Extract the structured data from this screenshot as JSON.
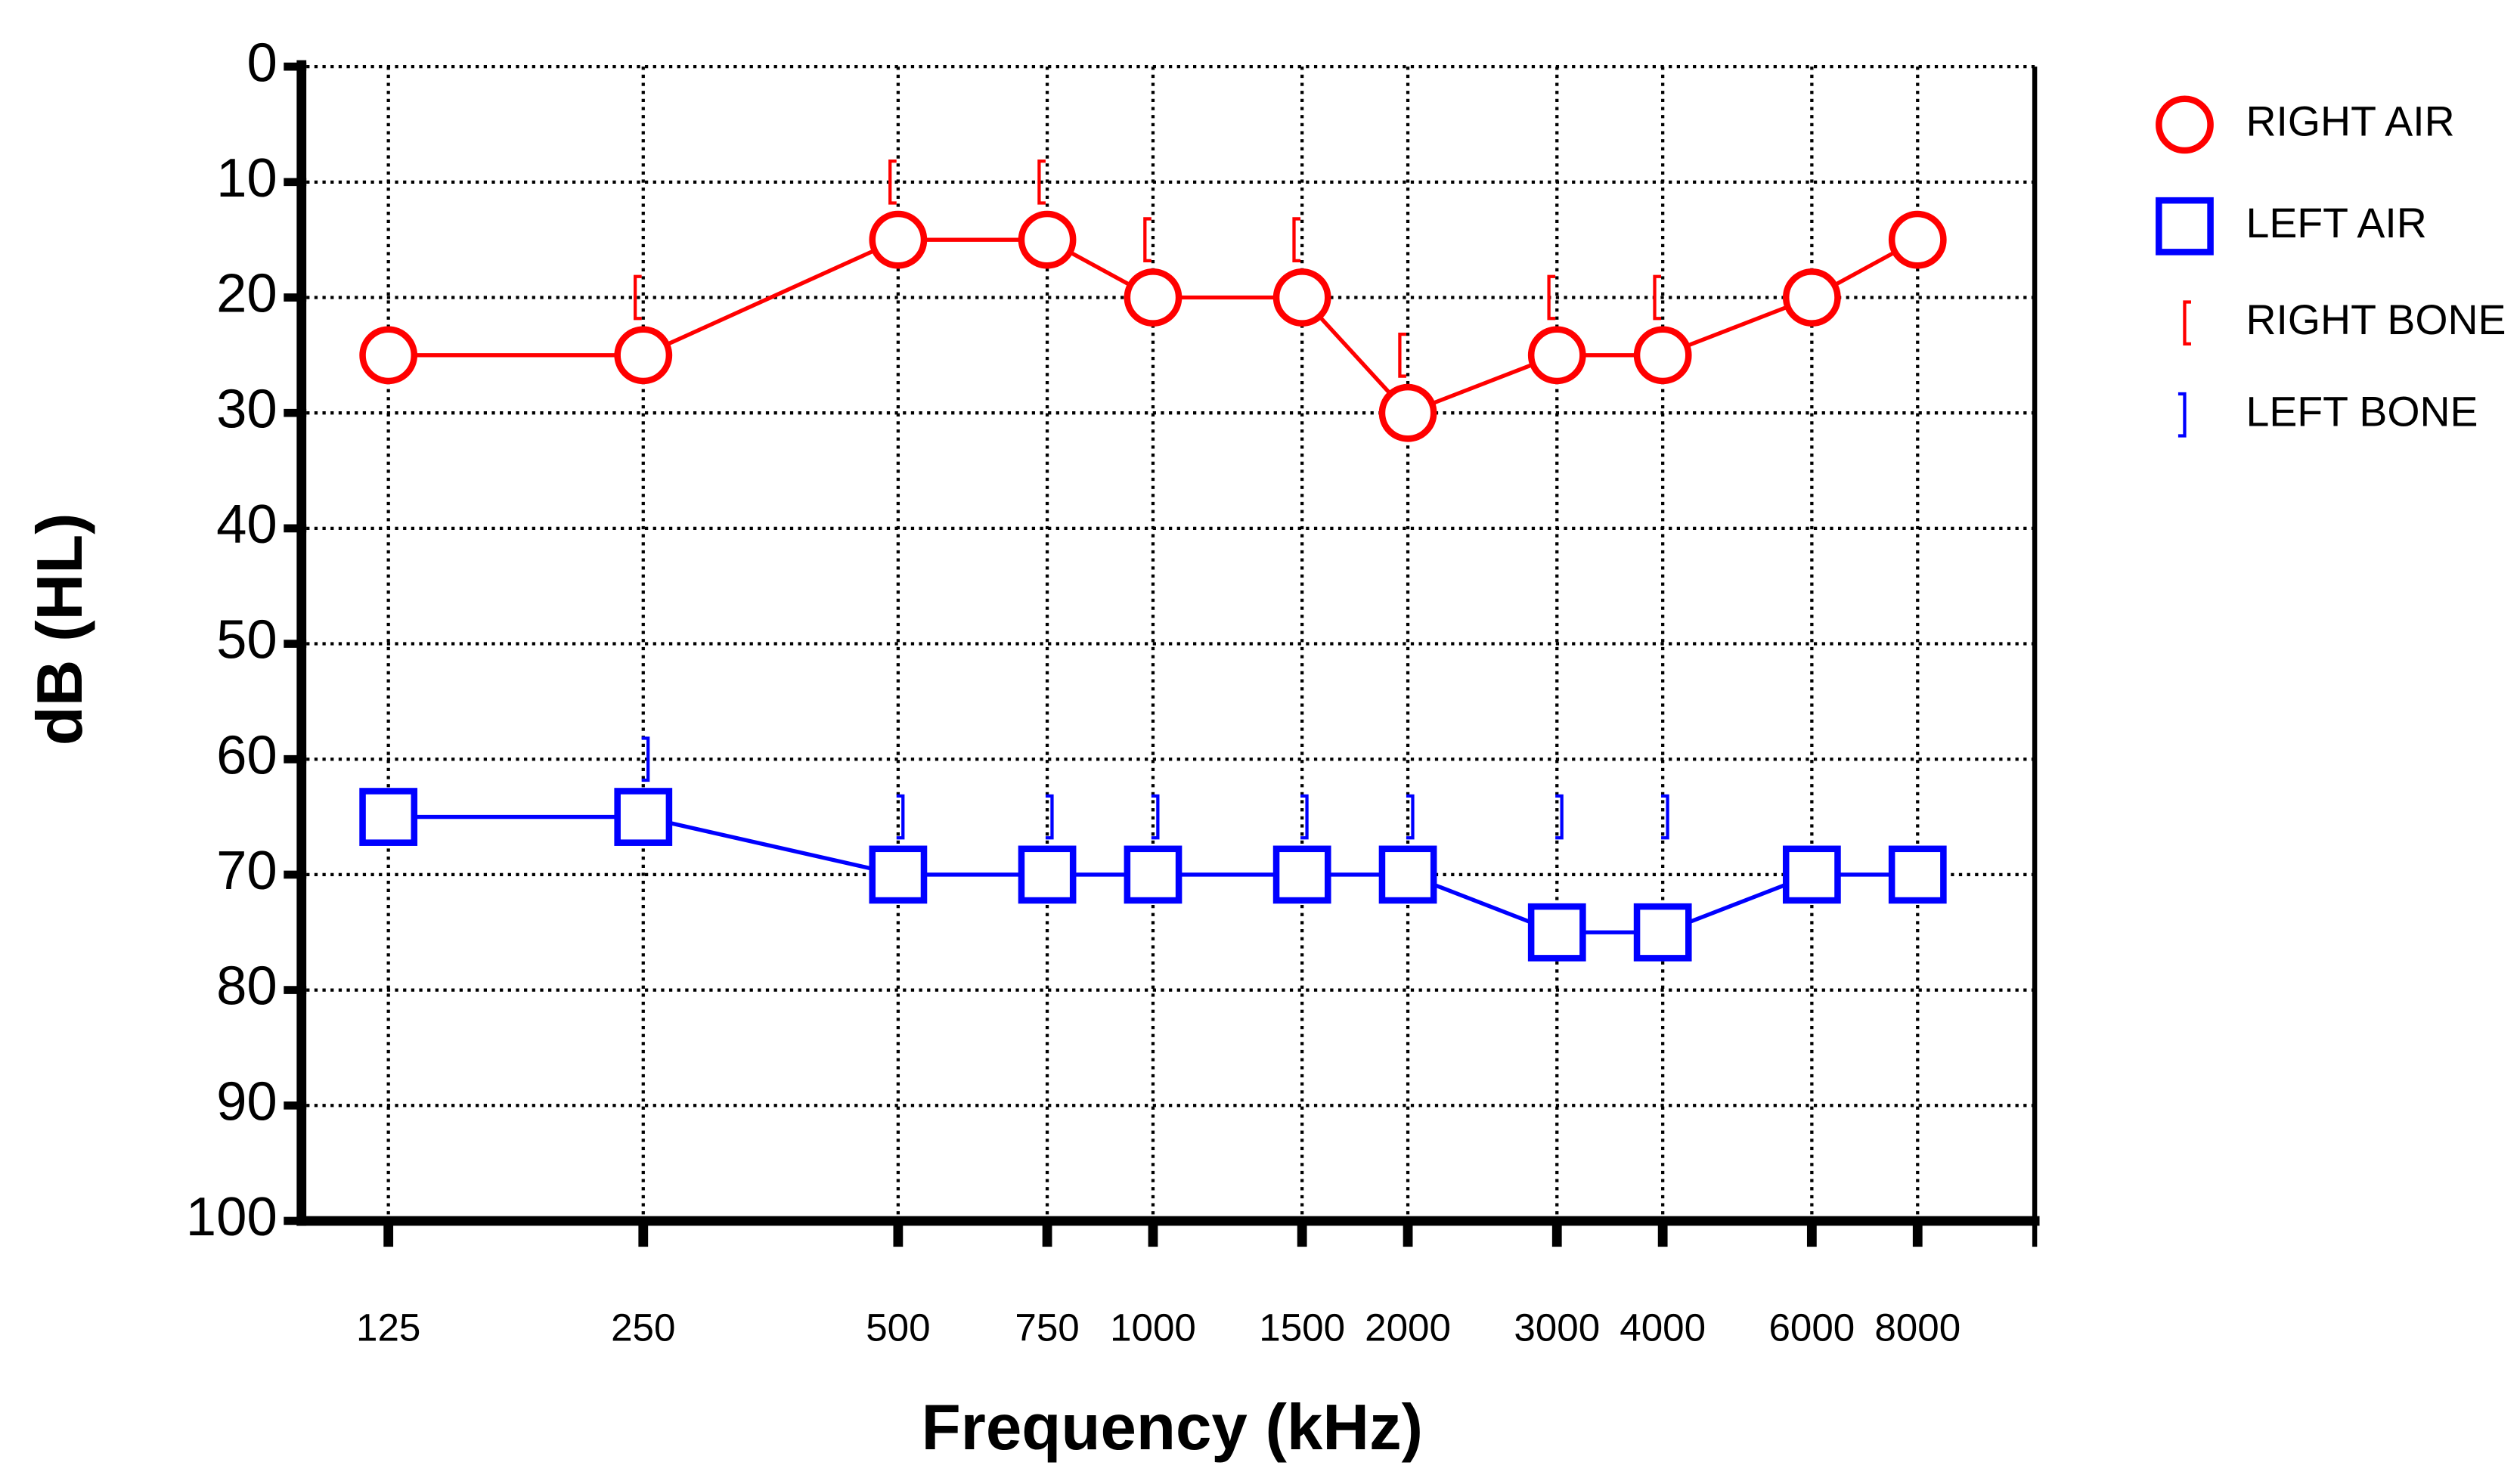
{
  "chart_data": {
    "type": "audiogram",
    "x_label": "Frequency (kHz)",
    "y_label": "dB (HL)",
    "x": [
      125,
      250,
      500,
      750,
      1000,
      1500,
      2000,
      3000,
      4000,
      6000,
      8000
    ],
    "xticks": [
      125,
      250,
      500,
      750,
      1000,
      1500,
      2000,
      3000,
      4000,
      6000,
      8000
    ],
    "xlim": [
      100,
      11000
    ],
    "x_log": true,
    "ylim": [
      0,
      100
    ],
    "y_inverted": true,
    "yticks": [
      0,
      10,
      20,
      30,
      40,
      50,
      60,
      70,
      80,
      90,
      100
    ],
    "grid": true,
    "legend": "right",
    "series": [
      {
        "name": "RIGHT AIR",
        "color": "#ff0000",
        "marker": "circle",
        "line": true,
        "values": [
          25,
          25,
          15,
          15,
          20,
          20,
          30,
          25,
          25,
          20,
          15
        ]
      },
      {
        "name": "LEFT AIR",
        "color": "#0000ff",
        "marker": "square",
        "line": true,
        "values": [
          65,
          65,
          70,
          70,
          70,
          70,
          70,
          75,
          75,
          70,
          70
        ]
      },
      {
        "name": "RIGHT BONE",
        "color": "#ff0000",
        "marker": "bracket-left",
        "line": false,
        "values": [
          null,
          20,
          10,
          10,
          15,
          15,
          25,
          20,
          20,
          null,
          null
        ]
      },
      {
        "name": "LEFT BONE",
        "color": "#0000ff",
        "marker": "bracket-right",
        "line": false,
        "values": [
          null,
          60,
          65,
          65,
          65,
          65,
          65,
          65,
          65,
          null,
          null
        ]
      }
    ]
  }
}
